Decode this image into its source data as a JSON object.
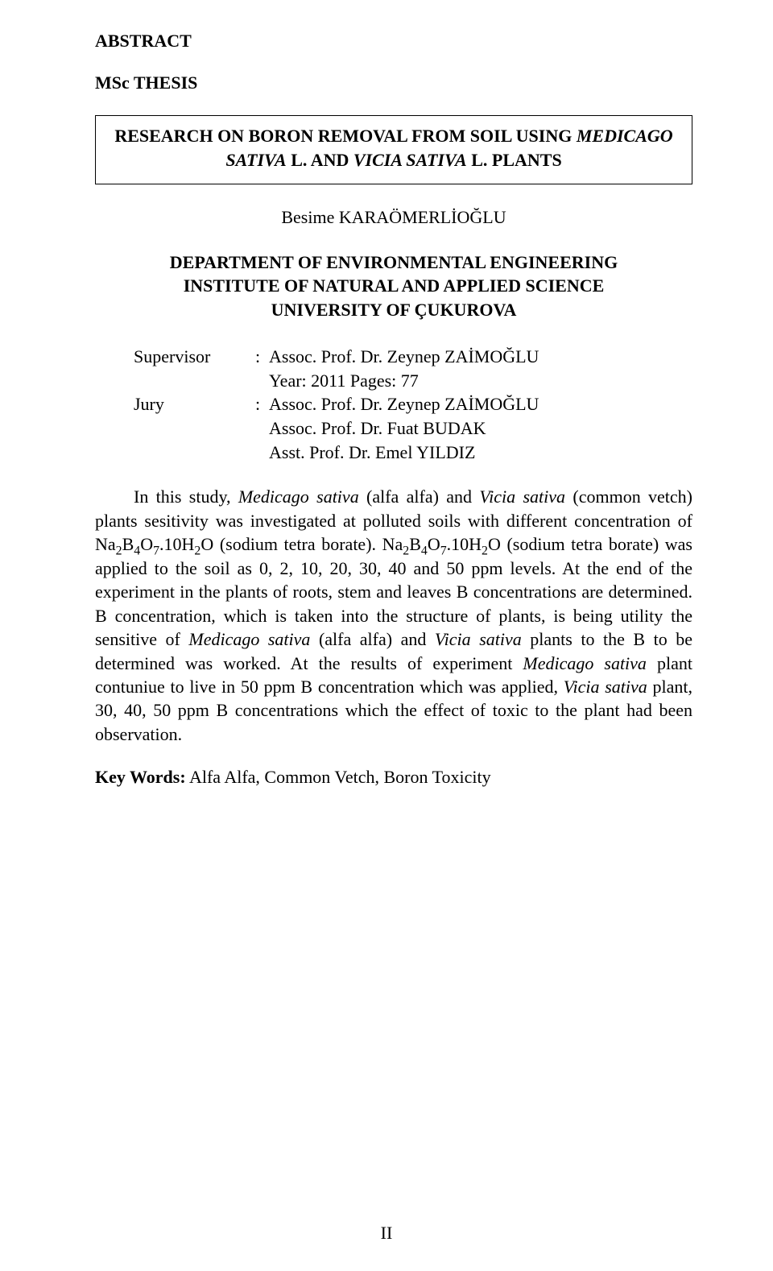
{
  "colors": {
    "page_bg": "#ffffff",
    "text": "#000000",
    "border": "#000000"
  },
  "typography": {
    "family": "Times New Roman",
    "base_size_pt": 12,
    "heading_weight": "bold"
  },
  "headings": {
    "abstract": "ABSTRACT",
    "thesis_type": "MSc THESIS"
  },
  "title": {
    "line1_prefix": "RESEARCH ON BORON REMOVAL FROM SOIL USING ",
    "line1_ital": "MEDICAGO",
    "line2_ital": "SATIVA",
    "line2_mid": " L. AND ",
    "line2_ital2": "VICIA SATIVA",
    "line2_suffix": " L. PLANTS"
  },
  "author": "Besime KARAÖMERLİOĞLU",
  "department": {
    "l1": "DEPARTMENT OF ENVIRONMENTAL ENGINEERING",
    "l2": "INSTITUTE OF NATURAL AND APPLIED SCIENCE",
    "l3": "UNIVERSITY OF ÇUKUROVA"
  },
  "supervisor_block": {
    "rows": [
      {
        "label": "Supervisor",
        "colon": ":",
        "value": "Assoc. Prof. Dr. Zeynep ZAİMOĞLU"
      },
      {
        "label": "",
        "colon": "",
        "value": "Year: 2011  Pages: 77"
      },
      {
        "label": "Jury",
        "colon": ":",
        "value": "Assoc. Prof. Dr. Zeynep ZAİMOĞLU"
      },
      {
        "label": "",
        "colon": "",
        "value": "Assoc. Prof. Dr. Fuat BUDAK"
      },
      {
        "label": "",
        "colon": "",
        "value": "Asst. Prof. Dr. Emel YILDIZ"
      }
    ]
  },
  "body": {
    "seg1": "In this study,  ",
    "ital1": "Medicago sativa",
    "seg2": " (alfa alfa) and ",
    "ital2": "Vicia sativa",
    "seg3": " (common vetch) plants sesitivity was investigated at polluted soils with different concentration of Na",
    "sub1": "2",
    "seg4": "B",
    "sub2": "4",
    "seg5": "O",
    "sub3": "7",
    "seg6": ".10H",
    "sub4": "2",
    "seg7": "O (sodium tetra borate). Na",
    "sub5": "2",
    "seg8": "B",
    "sub6": "4",
    "seg9": "O",
    "sub7": "7",
    "seg10": ".10H",
    "sub8": "2",
    "seg11": "O (sodium tetra borate) was applied to the soil as 0, 2, 10, 20, 30, 40 and 50 ppm levels. At the end of the experiment in the plants of roots, stem and leaves B concentrations are determined. B concentration, which is taken into the structure of plants, is being utility the sensitive of ",
    "ital3": "Medicago sativa",
    "seg12": " (alfa alfa) and ",
    "ital4": "Vicia sativa",
    "seg13": " plants to the B to be determined was worked. At the results of experiment ",
    "ital5": "Medicago sativa",
    "seg14": " plant contuniue to live in 50 ppm B concentration which was applied, ",
    "ital6": "Vicia sativa",
    "seg15": " plant, 30, 40, 50 ppm B concentrations which the effect of toxic to the plant had been observation."
  },
  "keywords": {
    "label": "Key Words:",
    "value": "  Alfa Alfa, Common Vetch, Boron Toxicity"
  },
  "page_number": "II"
}
